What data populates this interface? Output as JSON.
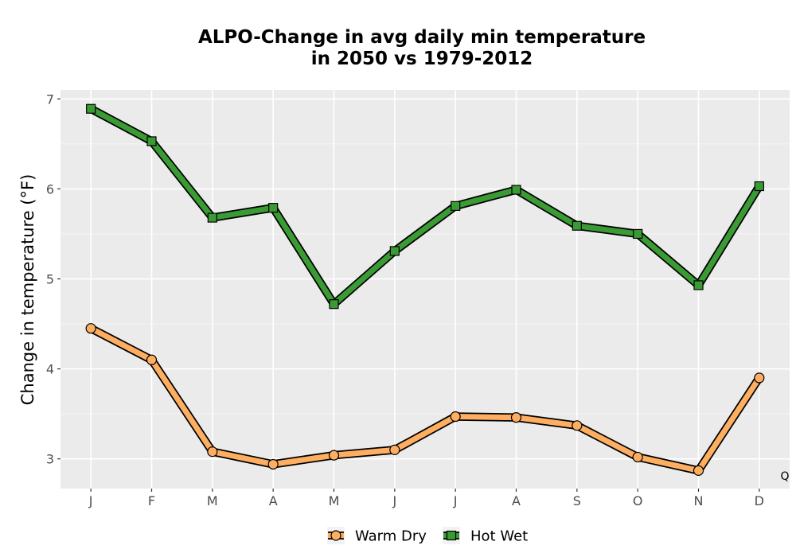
{
  "chart_data": {
    "type": "line",
    "title": [
      "ALPO-Change in avg daily min temperature",
      "in 2050 vs 1979-2012"
    ],
    "xlabel": "",
    "ylabel": "Change in temperature (°F)",
    "categories": [
      "J",
      "F",
      "M",
      "A",
      "M",
      "J",
      "J",
      "A",
      "S",
      "O",
      "N",
      "D"
    ],
    "ylim": [
      2.67,
      7.1
    ],
    "yticks": [
      3,
      4,
      5,
      6,
      7
    ],
    "grid": true,
    "legend_position": "bottom",
    "corner_label": "Q",
    "series": [
      {
        "name": "Warm Dry",
        "marker": "circle",
        "color": "#fdae61",
        "values": [
          4.45,
          4.1,
          3.08,
          2.94,
          3.04,
          3.1,
          3.47,
          3.46,
          3.37,
          3.02,
          2.87,
          3.9
        ]
      },
      {
        "name": "Hot Wet",
        "marker": "square",
        "color": "#3a9b34",
        "values": [
          6.89,
          6.53,
          5.68,
          5.79,
          4.72,
          5.31,
          5.81,
          5.99,
          5.59,
          5.5,
          4.93,
          6.03
        ]
      }
    ]
  }
}
